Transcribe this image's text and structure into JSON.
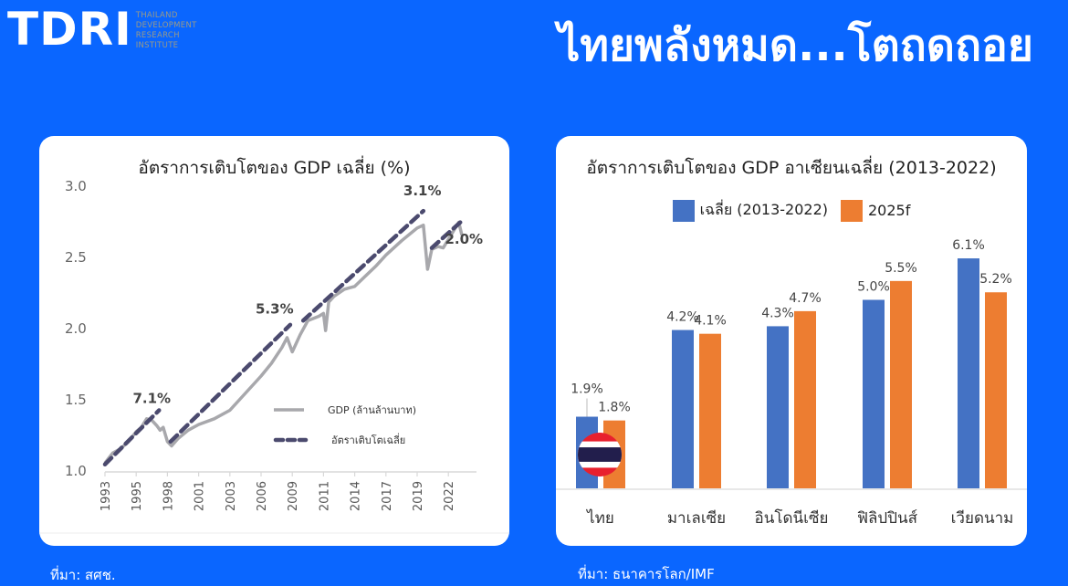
{
  "header": {
    "logo_text": "TDRI",
    "logo_sub": [
      "THAILAND",
      "DEVELOPMENT",
      "RESEARCH",
      "INSTITUTE"
    ],
    "headline": "ไทยพลังหมด...โตถดถอย"
  },
  "colors": {
    "background": "#0A66FF",
    "gdp_line": "#A8A8AC",
    "trend_line": "#4B4A6E",
    "bar_avg": "#4472C4",
    "bar_2025f": "#ED7D31"
  },
  "left_card": {
    "source": "ที่มา: สศช."
  },
  "right_card": {
    "source": "ที่มา: ธนาคารโลก/IMF"
  },
  "chart_data": [
    {
      "type": "line",
      "title": "อัตราการเติบโตของ GDP เฉลี่ย (%)",
      "xlabel": "",
      "ylabel": "",
      "ylim": [
        1.0,
        3.0
      ],
      "yticks": [
        "3.0",
        "2.5",
        "2.0",
        "1.5",
        "1.0"
      ],
      "xticks": [
        "1993",
        "1995",
        "1998",
        "2001",
        "2003",
        "2006",
        "2009",
        "2011",
        "2014",
        "2017",
        "2019",
        "2022"
      ],
      "grid": false,
      "legend_position": "lower right",
      "legend": [
        "GDP (ล้านล้านบาท)",
        "อัตราเติบโตเฉลี่ย"
      ],
      "annotations": [
        {
          "text": "7.1%",
          "x": 1996.5,
          "y": 1.47
        },
        {
          "text": "5.3%",
          "x": 2007.3,
          "y": 2.1
        },
        {
          "text": "3.1%",
          "x": 2019.5,
          "y": 2.93
        },
        {
          "text": "2.0%",
          "x": 2023.5,
          "y": 2.59
        }
      ],
      "series": [
        {
          "name": "GDP (ล้านล้านบาท)",
          "style": "solid",
          "x": [
            1993,
            1993.5,
            1994,
            1994.5,
            1995,
            1995.5,
            1996,
            1996.5,
            1997,
            1997.3,
            1997.6,
            1998,
            1998.4,
            1999,
            2000,
            2001,
            2002,
            2003,
            2004,
            2005,
            2006,
            2007,
            2008,
            2008.5,
            2009,
            2009.5,
            2010,
            2010.7,
            2011,
            2011.2,
            2011.5,
            2012,
            2013,
            2014,
            2015,
            2016,
            2017,
            2018,
            2019,
            2019.6,
            2020,
            2020.4,
            2021,
            2021.5,
            2022,
            2022.5,
            2023,
            2023.3
          ],
          "values": [
            1.05,
            1.12,
            1.15,
            1.2,
            1.27,
            1.3,
            1.36,
            1.35,
            1.31,
            1.28,
            1.3,
            1.2,
            1.17,
            1.22,
            1.28,
            1.32,
            1.36,
            1.42,
            1.5,
            1.58,
            1.66,
            1.75,
            1.86,
            1.93,
            1.83,
            1.95,
            2.05,
            2.08,
            2.1,
            1.98,
            2.18,
            2.22,
            2.27,
            2.29,
            2.36,
            2.43,
            2.51,
            2.61,
            2.7,
            2.72,
            2.41,
            2.55,
            2.57,
            2.56,
            2.62,
            2.68,
            2.74,
            2.65
          ]
        },
        {
          "name": "อัตราเติบโตเฉลี่ย",
          "style": "dashed",
          "segments": [
            {
              "x": [
                1993,
                1997.2
              ],
              "values": [
                1.04,
                1.42
              ],
              "label": "7.1%"
            },
            {
              "x": [
                1998.3,
                2008.8
              ],
              "values": [
                1.2,
                2.02
              ],
              "label": "5.3%"
            },
            {
              "x": [
                2009.7,
                2019.6
              ],
              "values": [
                2.05,
                2.82
              ],
              "label": "3.1%"
            },
            {
              "x": [
                2020.4,
                2023.3
              ],
              "values": [
                2.56,
                2.75
              ],
              "label": "2.0%"
            }
          ]
        }
      ]
    },
    {
      "type": "bar",
      "title": "อัตราการเติบโตของ GDP อาเซียนเฉลี่ย (2013-2022)",
      "xlabel": "",
      "ylabel": "",
      "grid": false,
      "legend_position": "top",
      "categories": [
        "ไทย",
        "มาเลเซีย",
        "อินโดนีเซีย",
        "ฟิลิปปินส์",
        "เวียดนาม"
      ],
      "series": [
        {
          "name": "เฉลี่ย (2013-2022)",
          "values": [
            1.9,
            4.2,
            4.3,
            5.0,
            6.1
          ],
          "labels": [
            "1.9%",
            "4.2%",
            "4.3%",
            "5.0%",
            "6.1%"
          ]
        },
        {
          "name": "2025f",
          "values": [
            1.8,
            4.1,
            4.7,
            5.5,
            5.2
          ],
          "labels": [
            "1.8%",
            "4.1%",
            "4.7%",
            "5.5%",
            "5.2%"
          ]
        }
      ],
      "annotations": [
        {
          "text": "Thailand flag icon on Thai bars"
        }
      ]
    }
  ]
}
